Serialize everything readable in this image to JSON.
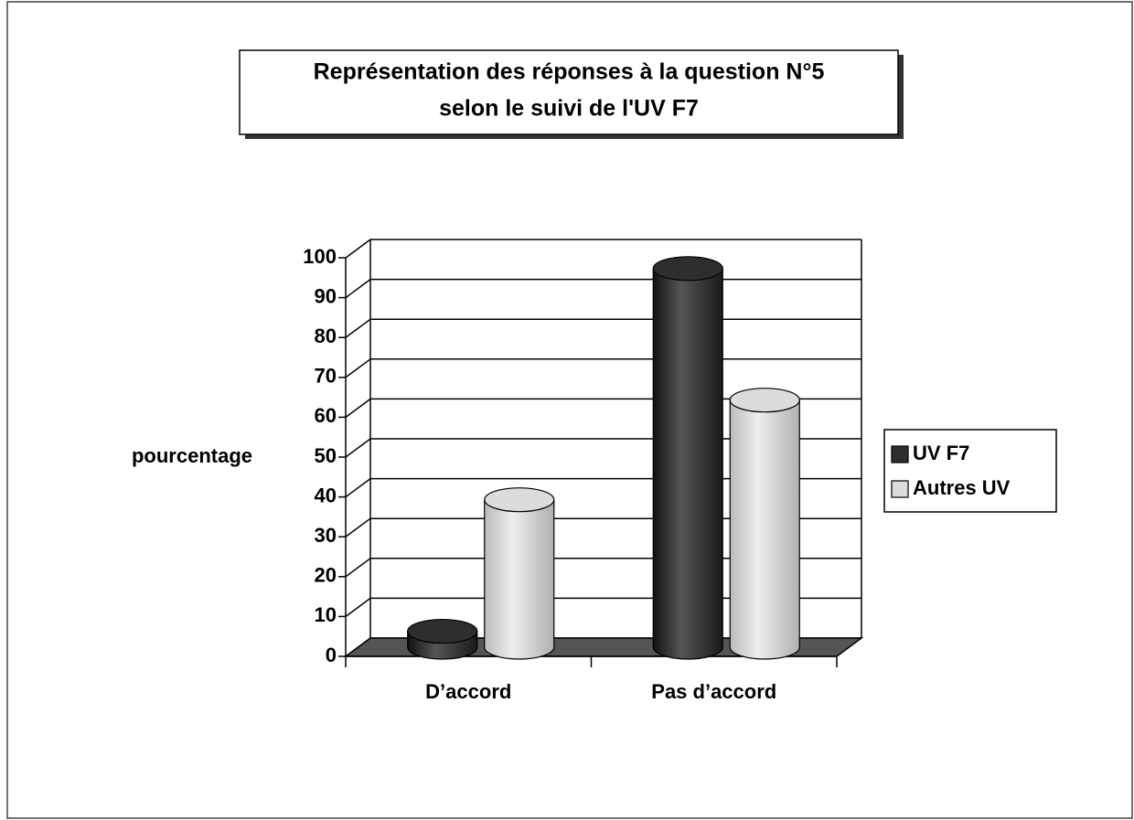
{
  "chart_data": {
    "type": "bar",
    "title": [
      "Représentation des réponses à la question N°5",
      "selon le suivi de l'UV F7"
    ],
    "y_label": "pourcentage",
    "categories": [
      "D’accord",
      "Pas d’accord"
    ],
    "series": [
      {
        "name": "UV F7",
        "color": "#2e2e2e",
        "values": [
          4,
          95
        ]
      },
      {
        "name": "Autres UV",
        "color": "#dcdcdc",
        "values": [
          37,
          62
        ]
      }
    ],
    "ylim": [
      0,
      100
    ],
    "yticks": [
      0,
      10,
      20,
      30,
      40,
      50,
      60,
      70,
      80,
      90,
      100
    ],
    "grid": true,
    "legend": "right"
  }
}
